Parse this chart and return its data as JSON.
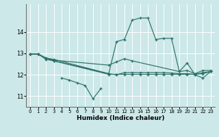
{
  "xlabel": "Humidex (Indice chaleur)",
  "xlim": [
    -0.5,
    23.5
  ],
  "ylim": [
    10.5,
    15.3
  ],
  "yticks": [
    11,
    12,
    13,
    14
  ],
  "xticks": [
    0,
    1,
    2,
    3,
    4,
    5,
    6,
    7,
    8,
    9,
    10,
    11,
    12,
    13,
    14,
    15,
    16,
    17,
    18,
    19,
    20,
    21,
    22,
    23
  ],
  "bg_color": "#cce8e8",
  "line_color": "#2a7068",
  "grid_color": "#ffffff",
  "line1_x": [
    0,
    1,
    2,
    3,
    10,
    11,
    12,
    13,
    14,
    15,
    16,
    17,
    18,
    19,
    20,
    21,
    22,
    23
  ],
  "line1_y": [
    12.97,
    12.97,
    12.78,
    12.72,
    12.05,
    13.55,
    13.65,
    14.55,
    14.65,
    14.65,
    13.65,
    13.7,
    13.7,
    12.15,
    12.55,
    12.0,
    11.85,
    12.15
  ],
  "line2_x": [
    0,
    1,
    2,
    3,
    10,
    11,
    12,
    13,
    19,
    20,
    21,
    22,
    23
  ],
  "line2_y": [
    12.97,
    12.97,
    12.78,
    12.68,
    12.45,
    12.6,
    12.75,
    12.65,
    12.15,
    12.2,
    12.05,
    12.2,
    12.2
  ],
  "line3_x": [
    0,
    1,
    2,
    3,
    10,
    11,
    12,
    13,
    14,
    15,
    16,
    17,
    18,
    19,
    20,
    21,
    22,
    23
  ],
  "line3_y": [
    12.97,
    12.97,
    12.72,
    12.65,
    12.05,
    12.0,
    12.1,
    12.1,
    12.1,
    12.1,
    12.1,
    12.1,
    12.08,
    12.05,
    12.05,
    12.02,
    12.1,
    12.15
  ],
  "line4_x": [
    4,
    5,
    6,
    7,
    8,
    9
  ],
  "line4_y": [
    11.85,
    11.75,
    11.62,
    11.5,
    10.88,
    11.35
  ],
  "line5_x": [
    0,
    1,
    2,
    3,
    10,
    11,
    12,
    13,
    14,
    15,
    16,
    17,
    18,
    19,
    20,
    21,
    22,
    23
  ],
  "line5_y": [
    12.97,
    12.97,
    12.78,
    12.65,
    12.02,
    12.02,
    12.02,
    12.02,
    12.02,
    12.02,
    12.02,
    12.02,
    12.02,
    12.02,
    12.02,
    12.02,
    12.05,
    12.15
  ]
}
